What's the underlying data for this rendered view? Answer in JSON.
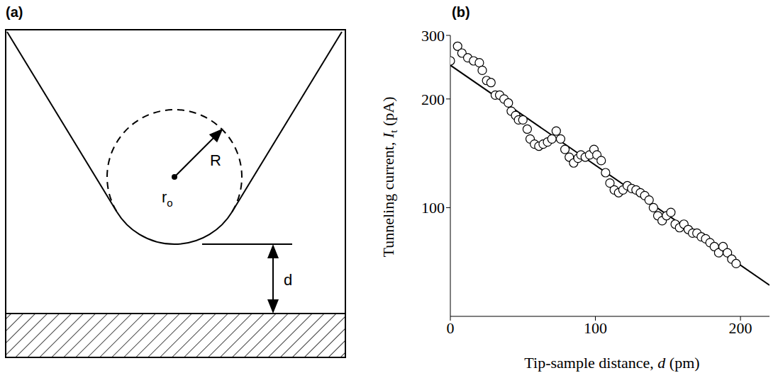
{
  "diagram": {
    "letter": "(a)",
    "radius_label": "R",
    "center_label": "r",
    "center_subscript": "o",
    "distance_label": "d"
  },
  "chart_data": {
    "letter": "(b)",
    "type": "scatter",
    "xlabel": {
      "before": "Tip-sample distance, ",
      "italic": "d",
      "after": " (pm)"
    },
    "ylabel": {
      "before": "Tunneling current, ",
      "italic": "I",
      "subscript": "t",
      "after": " (pA)"
    },
    "x": [
      0,
      5,
      8,
      12,
      16,
      20,
      22,
      25,
      28,
      31,
      34,
      37,
      40,
      42,
      45,
      47,
      50,
      53,
      55,
      58,
      61,
      64,
      67,
      70,
      73,
      76,
      79,
      82,
      85,
      88,
      90,
      93,
      96,
      99,
      101,
      104,
      107,
      110,
      113,
      116,
      119,
      122,
      125,
      128,
      131,
      134,
      137,
      140,
      143,
      146,
      149,
      152,
      155,
      158,
      161,
      164,
      167,
      170,
      173,
      176,
      179,
      182,
      185,
      188,
      191,
      194,
      197
    ],
    "values": [
      255,
      280,
      268,
      260,
      255,
      252,
      240,
      225,
      222,
      205,
      205,
      200,
      195,
      185,
      180,
      175,
      175,
      165,
      155,
      150,
      148,
      150,
      152,
      155,
      163,
      155,
      145,
      138,
      133,
      137,
      140,
      138,
      140,
      145,
      140,
      135,
      125,
      117,
      112,
      110,
      112,
      115,
      113,
      112,
      110,
      108,
      105,
      100,
      95,
      92,
      95,
      97,
      90,
      88,
      90,
      87,
      85,
      85,
      83,
      82,
      80,
      78,
      75,
      78,
      75,
      72,
      70
    ],
    "marker": "open_circle",
    "color": "#000000",
    "fit": {
      "type": "line",
      "x": [
        0,
        220
      ],
      "values": [
        248,
        61
      ],
      "color": "#000000"
    },
    "xlim": [
      0,
      220
    ],
    "xticks": [
      0,
      100,
      200
    ],
    "ylim": [
      50,
      300
    ],
    "yticks": [
      100,
      200,
      300
    ],
    "log": "y",
    "grid": false
  }
}
